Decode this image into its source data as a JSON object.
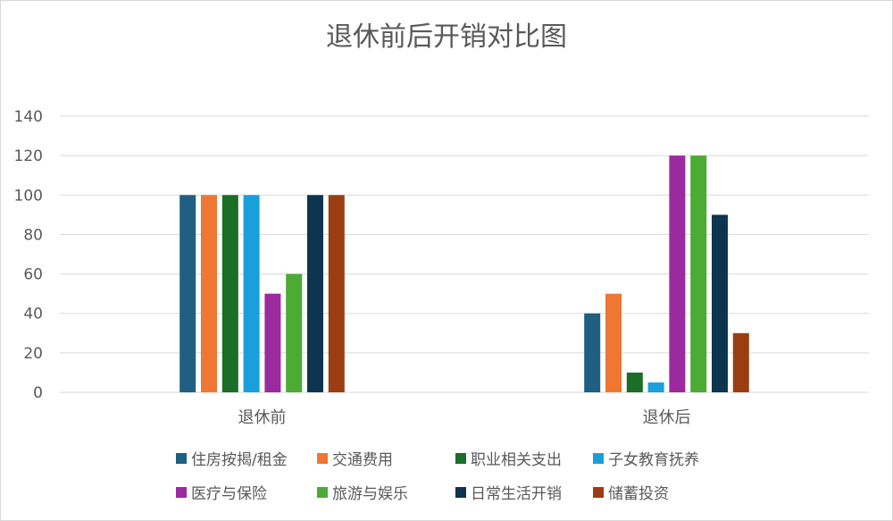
{
  "chart_data": {
    "type": "bar",
    "title": "退休前后开销对比图",
    "xlabel": "",
    "ylabel": "",
    "categories": [
      "退休前",
      "退休后"
    ],
    "ylim": [
      0,
      140
    ],
    "yticks": [
      0,
      20,
      40,
      60,
      80,
      100,
      120,
      140
    ],
    "grid": true,
    "legend_position": "bottom",
    "series": [
      {
        "name": "住房按揭/租金",
        "color": "#1f5f82",
        "values": [
          100,
          40
        ]
      },
      {
        "name": "交通费用",
        "color": "#ee7733",
        "values": [
          100,
          50
        ]
      },
      {
        "name": "职业相关支出",
        "color": "#1a6e25",
        "values": [
          100,
          10
        ]
      },
      {
        "name": "子女教育抚养",
        "color": "#199fdb",
        "values": [
          100,
          5
        ]
      },
      {
        "name": "医疗与保险",
        "color": "#9b2a9f",
        "values": [
          50,
          120
        ]
      },
      {
        "name": "旅游与娱乐",
        "color": "#4bab33",
        "values": [
          60,
          120
        ]
      },
      {
        "name": "日常生活开销",
        "color": "#0d3550",
        "values": [
          100,
          90
        ]
      },
      {
        "name": "储蓄投资",
        "color": "#9a3e12",
        "values": [
          100,
          30
        ]
      }
    ]
  }
}
